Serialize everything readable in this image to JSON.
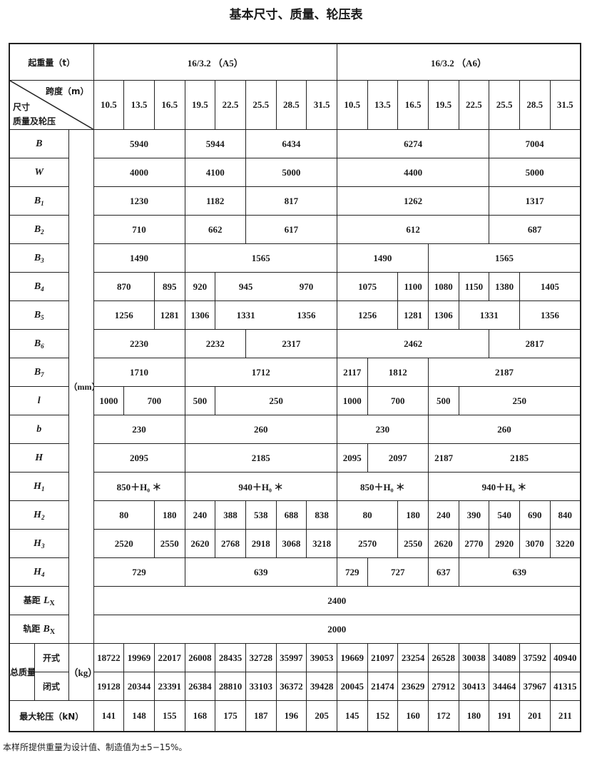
{
  "title": "基本尺寸、质量、轮压表",
  "header": {
    "capacity_label": "起重量（t）",
    "groups": [
      "16/3.2 （A5）",
      "16/3.2 （A6）"
    ],
    "diag_top": "跨度（m）",
    "diag_mid": "尺寸",
    "diag_bot": "质量及轮压",
    "spans": [
      "10.5",
      "13.5",
      "16.5",
      "19.5",
      "22.5",
      "25.5",
      "28.5",
      "31.5",
      "10.5",
      "13.5",
      "16.5",
      "19.5",
      "22.5",
      "25.5",
      "28.5",
      "31.5"
    ]
  },
  "unit_mm": "（mm）",
  "unit_kg": "（kg）",
  "dim_rows": [
    {
      "label": {
        "sym": "B",
        "sub": ""
      },
      "cells": [
        {
          "v": "5940",
          "span": 3
        },
        {
          "v": "5944",
          "span": 2
        },
        {
          "v": "6434",
          "span": 3
        },
        {
          "v": "6274",
          "span": 5
        },
        {
          "v": "7004",
          "span": 3
        }
      ]
    },
    {
      "label": {
        "sym": "W",
        "sub": ""
      },
      "cells": [
        {
          "v": "4000",
          "span": 3
        },
        {
          "v": "4100",
          "span": 2
        },
        {
          "v": "5000",
          "span": 3
        },
        {
          "v": "4400",
          "span": 5
        },
        {
          "v": "5000",
          "span": 3
        }
      ]
    },
    {
      "label": {
        "sym": "B",
        "sub": "1"
      },
      "cells": [
        {
          "v": "1230",
          "span": 3
        },
        {
          "v": "1182",
          "span": 2
        },
        {
          "v": "817",
          "span": 3
        },
        {
          "v": "1262",
          "span": 5
        },
        {
          "v": "1317",
          "span": 3
        }
      ]
    },
    {
      "label": {
        "sym": "B",
        "sub": "2"
      },
      "cells": [
        {
          "v": "710",
          "span": 3
        },
        {
          "v": "662",
          "span": 2
        },
        {
          "v": "617",
          "span": 3
        },
        {
          "v": "612",
          "span": 5
        },
        {
          "v": "687",
          "span": 3
        }
      ]
    },
    {
      "label": {
        "sym": "B",
        "sub": "3"
      },
      "cells": [
        {
          "v": "1490",
          "span": 3
        },
        {
          "v": "1565",
          "span": 5
        },
        {
          "v": "1490",
          "span": 3
        },
        {
          "v": "1565",
          "span": 5
        }
      ]
    },
    {
      "label": {
        "sym": "B",
        "sub": "4"
      },
      "cells": [
        {
          "v": "870",
          "span": 2
        },
        {
          "v": "895",
          "span": 1
        },
        {
          "v": "920",
          "span": 1
        },
        {
          "parts": [
            {
              "v": "945",
              "span": 2
            },
            {
              "v": "970",
              "span": 2
            }
          ],
          "span": 4
        },
        {
          "v": "1075",
          "span": 2
        },
        {
          "v": "1100",
          "span": 1
        },
        {
          "v": "1080",
          "span": 1
        },
        {
          "v": "1150",
          "span": 1
        },
        {
          "v": "1380",
          "span": 1
        },
        {
          "v": "1405",
          "span": 2
        }
      ]
    },
    {
      "label": {
        "sym": "B",
        "sub": "5"
      },
      "cells": [
        {
          "v": "1256",
          "span": 2
        },
        {
          "v": "1281",
          "span": 1
        },
        {
          "v": "1306",
          "span": 1
        },
        {
          "parts": [
            {
              "v": "1331",
              "span": 2
            },
            {
              "v": "1356",
              "span": 2
            }
          ],
          "span": 4
        },
        {
          "v": "1256",
          "span": 2
        },
        {
          "v": "1281",
          "span": 1
        },
        {
          "v": "1306",
          "span": 1
        },
        {
          "v": "1331",
          "span": 2
        },
        {
          "v": "1356",
          "span": 2
        }
      ]
    },
    {
      "label": {
        "sym": "B",
        "sub": "6"
      },
      "cells": [
        {
          "v": "2230",
          "span": 3
        },
        {
          "v": "2232",
          "span": 2
        },
        {
          "v": "2317",
          "span": 3
        },
        {
          "v": "2462",
          "span": 5
        },
        {
          "v": "2817",
          "span": 3
        }
      ]
    },
    {
      "label": {
        "sym": "B",
        "sub": "7"
      },
      "cells": [
        {
          "v": "1710",
          "span": 3
        },
        {
          "v": "1712",
          "span": 5
        },
        {
          "v": "2117",
          "span": 1
        },
        {
          "v": "1812",
          "span": 2
        },
        {
          "v": "2187",
          "span": 5
        }
      ]
    },
    {
      "label": {
        "sym": "l",
        "sub": ""
      },
      "cells": [
        {
          "v": "1000",
          "span": 1
        },
        {
          "v": "700",
          "span": 2
        },
        {
          "v": "500",
          "span": 1
        },
        {
          "v": "250",
          "span": 4
        },
        {
          "v": "1000",
          "span": 1
        },
        {
          "v": "700",
          "span": 2
        },
        {
          "v": "500",
          "span": 1
        },
        {
          "v": "250",
          "span": 4
        }
      ]
    },
    {
      "label": {
        "sym": "b",
        "sub": ""
      },
      "cells": [
        {
          "v": "230",
          "span": 3
        },
        {
          "v": "260",
          "span": 5
        },
        {
          "v": "230",
          "span": 3
        },
        {
          "v": "260",
          "span": 5
        }
      ]
    },
    {
      "label": {
        "sym": "H",
        "sub": ""
      },
      "cells": [
        {
          "v": "2095",
          "span": 3
        },
        {
          "v": "2185",
          "span": 5
        },
        {
          "v": "2095",
          "span": 1
        },
        {
          "v": "2097",
          "span": 2
        },
        {
          "parts": [
            {
              "v": "2187",
              "span": 1
            },
            {
              "v": "2185",
              "span": 4
            }
          ],
          "span": 5
        }
      ]
    },
    {
      "label": {
        "sym": "H",
        "sub": "1"
      },
      "cells": [
        {
          "v": "850＋H₀ ＊",
          "span": 3
        },
        {
          "v": "940＋H₀ ＊",
          "span": 5
        },
        {
          "v": "850＋H₀ ＊",
          "span": 3
        },
        {
          "v": "940＋H₀ ＊",
          "span": 5
        }
      ]
    },
    {
      "label": {
        "sym": "H",
        "sub": "2"
      },
      "cells": [
        {
          "v": "80",
          "span": 2
        },
        {
          "v": "180",
          "span": 1
        },
        {
          "v": "240",
          "span": 1
        },
        {
          "v": "388",
          "span": 1
        },
        {
          "v": "538",
          "span": 1
        },
        {
          "v": "688",
          "span": 1
        },
        {
          "v": "838",
          "span": 1
        },
        {
          "v": "80",
          "span": 2
        },
        {
          "v": "180",
          "span": 1
        },
        {
          "v": "240",
          "span": 1
        },
        {
          "v": "390",
          "span": 1
        },
        {
          "v": "540",
          "span": 1
        },
        {
          "v": "690",
          "span": 1
        },
        {
          "v": "840",
          "span": 1
        }
      ]
    },
    {
      "label": {
        "sym": "H",
        "sub": "3"
      },
      "cells": [
        {
          "v": "2520",
          "span": 2
        },
        {
          "v": "2550",
          "span": 1
        },
        {
          "v": "2620",
          "span": 1
        },
        {
          "v": "2768",
          "span": 1
        },
        {
          "v": "2918",
          "span": 1
        },
        {
          "v": "3068",
          "span": 1
        },
        {
          "v": "3218",
          "span": 1
        },
        {
          "v": "2570",
          "span": 2
        },
        {
          "v": "2550",
          "span": 1
        },
        {
          "v": "2620",
          "span": 1
        },
        {
          "v": "2770",
          "span": 1
        },
        {
          "v": "2920",
          "span": 1
        },
        {
          "v": "3070",
          "span": 1
        },
        {
          "v": "3220",
          "span": 1
        }
      ]
    },
    {
      "label": {
        "sym": "H",
        "sub": "4"
      },
      "cells": [
        {
          "v": "729",
          "span": 3
        },
        {
          "v": "639",
          "span": 5
        },
        {
          "v": "729",
          "span": 1
        },
        {
          "v": "727",
          "span": 2
        },
        {
          "v": "637",
          "span": 1
        },
        {
          "v": "639",
          "span": 4
        }
      ]
    },
    {
      "label": {
        "text": "基距 ",
        "sym": "L",
        "subx": "X"
      },
      "cells": [
        {
          "v": "2400",
          "span": 16
        }
      ]
    },
    {
      "label": {
        "text": "轨距 ",
        "sym": "B",
        "subx": "X"
      },
      "cells": [
        {
          "v": "2000",
          "span": 16
        }
      ]
    }
  ],
  "mass": {
    "label": "总质量",
    "open_label": "开式",
    "closed_label": "闭式",
    "open": [
      "18722",
      "19969",
      "22017",
      "26008",
      "28435",
      "32728",
      "35997",
      "39053",
      "19669",
      "21097",
      "23254",
      "26528",
      "30038",
      "34089",
      "37592",
      "40940"
    ],
    "closed": [
      "19128",
      "20344",
      "23391",
      "26384",
      "28810",
      "33103",
      "36372",
      "39428",
      "20045",
      "21474",
      "23629",
      "27912",
      "30413",
      "34464",
      "37967",
      "41315"
    ]
  },
  "max_load": {
    "label": "最大轮压（kN）",
    "values": [
      "141",
      "148",
      "155",
      "168",
      "175",
      "187",
      "196",
      "205",
      "145",
      "152",
      "160",
      "172",
      "180",
      "191",
      "201",
      "211"
    ]
  },
  "note": "本样所提供重量为设计值、制造值为±5−15%。"
}
